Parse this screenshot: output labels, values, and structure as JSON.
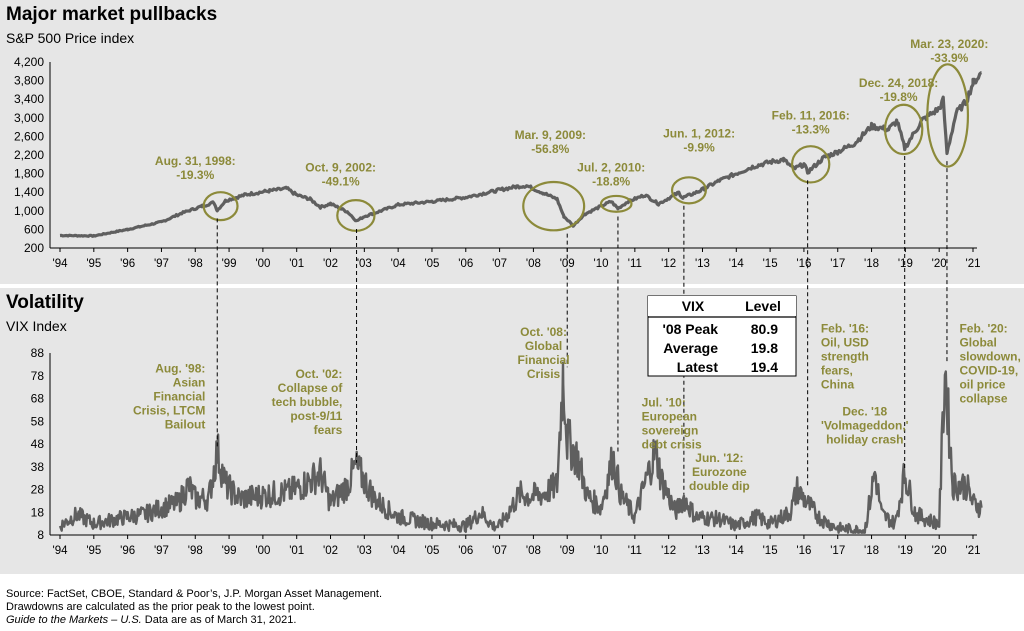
{
  "colors": {
    "panel_bg": "#e6e6e6",
    "line": "#5f5f5f",
    "annotation": "#8c8a3a",
    "ellipse": "#8c8a3a",
    "text": "#000000"
  },
  "chart_data": [
    {
      "type": "line",
      "title": "Major market pullbacks",
      "subtitle": "S&P 500 Price index",
      "x_ticks": [
        "'94",
        "'95",
        "'96",
        "'97",
        "'98",
        "'99",
        "'00",
        "'01",
        "'02",
        "'03",
        "'04",
        "'05",
        "'06",
        "'07",
        "'08",
        "'09",
        "'10",
        "'11",
        "'12",
        "'13",
        "'14",
        "'15",
        "'16",
        "'17",
        "'18",
        "'19",
        "'20",
        "'21"
      ],
      "y_ticks": [
        "200",
        "600",
        "1,000",
        "1,400",
        "1,800",
        "2,200",
        "2,600",
        "3,000",
        "3,400",
        "3,800",
        "4,200"
      ],
      "ylim": [
        200,
        4200
      ],
      "grid": false,
      "series": [
        {
          "x": [
            1994.0,
            1995.0,
            1996.0,
            1997.0,
            1997.6,
            1998.2,
            1998.55,
            1998.65,
            1998.9,
            1999.5,
            2000.2,
            2000.7,
            2001.0,
            2001.4,
            2001.7,
            2002.0,
            2002.5,
            2002.77,
            2003.0,
            2003.5,
            2004.0,
            2005.0,
            2006.0,
            2007.0,
            2007.5,
            2007.8,
            2008.3,
            2008.7,
            2008.9,
            2009.18,
            2009.5,
            2010.0,
            2010.3,
            2010.5,
            2010.8,
            2011.3,
            2011.7,
            2012.3,
            2012.42,
            2012.9,
            2013.5,
            2014.0,
            2014.5,
            2015.0,
            2015.4,
            2015.7,
            2016.0,
            2016.11,
            2016.6,
            2017.0,
            2017.5,
            2018.0,
            2018.5,
            2018.75,
            2018.98,
            2019.5,
            2020.0,
            2020.12,
            2020.23,
            2020.5,
            2020.8,
            2021.0,
            2021.25
          ],
          "values": [
            470,
            460,
            600,
            760,
            950,
            1100,
            1180,
            1010,
            1220,
            1350,
            1430,
            1480,
            1340,
            1250,
            1080,
            1150,
            980,
            780,
            880,
            1000,
            1130,
            1200,
            1290,
            1450,
            1520,
            1540,
            1380,
            1250,
            880,
            680,
            920,
            1100,
            1200,
            1050,
            1200,
            1340,
            1150,
            1390,
            1280,
            1420,
            1650,
            1800,
            1950,
            2050,
            2100,
            1900,
            2000,
            1830,
            2150,
            2270,
            2450,
            2820,
            2750,
            2930,
            2350,
            2950,
            3200,
            3380,
            2240,
            3100,
            3350,
            3750,
            3970
          ]
        }
      ],
      "annotations": [
        {
          "date": "Aug. 31, 1998:",
          "drawdown": "-19.3%"
        },
        {
          "date": "Oct. 9, 2002:",
          "drawdown": "-49.1%"
        },
        {
          "date": "Mar. 9, 2009:",
          "drawdown": "-56.8%"
        },
        {
          "date": "Jul. 2, 2010:",
          "drawdown": "-18.8%"
        },
        {
          "date": "Jun. 1, 2012:",
          "drawdown": "-9.9%"
        },
        {
          "date": "Feb. 11, 2016:",
          "drawdown": "-13.3%"
        },
        {
          "date": "Dec. 24, 2018:",
          "drawdown": "-19.8%"
        },
        {
          "date": "Mar. 23, 2020:",
          "drawdown": "-33.9%"
        }
      ]
    },
    {
      "type": "line",
      "title": "Volatility",
      "subtitle": "VIX Index",
      "x_ticks": [
        "'94",
        "'95",
        "'96",
        "'97",
        "'98",
        "'99",
        "'00",
        "'01",
        "'02",
        "'03",
        "'04",
        "'05",
        "'06",
        "'07",
        "'08",
        "'09",
        "'10",
        "'11",
        "'12",
        "'13",
        "'14",
        "'15",
        "'16",
        "'17",
        "'18",
        "'19",
        "'20",
        "'21"
      ],
      "y_ticks": [
        "8",
        "18",
        "28",
        "38",
        "48",
        "58",
        "68",
        "78",
        "88"
      ],
      "ylim": [
        8,
        88
      ],
      "grid": false,
      "series": [
        {
          "x": [
            1994.0,
            1994.5,
            1995.0,
            1996.0,
            1996.5,
            1997.0,
            1997.5,
            1997.8,
            1998.0,
            1998.4,
            1998.65,
            1998.9,
            1999.3,
            1999.8,
            2000.3,
            2000.8,
            2001.2,
            2001.7,
            2002.0,
            2002.5,
            2002.75,
            2003.0,
            2003.3,
            2003.7,
            2004.0,
            2005.0,
            2006.0,
            2006.45,
            2006.8,
            2007.0,
            2007.6,
            2007.9,
            2008.3,
            2008.7,
            2008.88,
            2009.0,
            2009.3,
            2009.6,
            2010.0,
            2010.35,
            2010.6,
            2011.0,
            2011.6,
            2011.8,
            2012.2,
            2012.45,
            2012.8,
            2013.5,
            2014.0,
            2014.6,
            2015.0,
            2015.6,
            2015.8,
            2016.1,
            2016.5,
            2017.0,
            2017.8,
            2018.1,
            2018.3,
            2018.7,
            2018.98,
            2019.3,
            2019.8,
            2020.0,
            2020.17,
            2020.4,
            2020.8,
            2021.0,
            2021.25
          ],
          "values": [
            12,
            17,
            13,
            16,
            17,
            20,
            22,
            30,
            24,
            24,
            45,
            30,
            24,
            25,
            26,
            27,
            30,
            35,
            22,
            30,
            38,
            32,
            24,
            19,
            16,
            13,
            12,
            18,
            12,
            12,
            26,
            25,
            26,
            30,
            80,
            50,
            42,
            25,
            20,
            42,
            25,
            16,
            45,
            32,
            18,
            24,
            16,
            15,
            12,
            16,
            13,
            18,
            28,
            22,
            15,
            11,
            10,
            36,
            17,
            13,
            35,
            17,
            14,
            13,
            82,
            30,
            30,
            22,
            20
          ]
        }
      ],
      "annotations": [
        "Aug. '98: Asian Financial Crisis, LTCM Bailout",
        "Oct. '02: Collapse of tech bubble, post-9/11 fears",
        "Oct. '08: Global Financial Crisis",
        "Jul. '10: European sovereign debt crisis",
        "Jun. '12: Eurozone double dip",
        "Feb. '16: Oil, USD strength fears, China",
        "Dec. '18 'Volmageddon,' holiday crash",
        "Feb. '20: Global slowdown, COVID-19, oil price collapse"
      ],
      "vix_table": {
        "headers": [
          "VIX",
          "Level"
        ],
        "rows": [
          [
            "'08 Peak",
            "80.9"
          ],
          [
            "Average",
            "19.8"
          ],
          [
            "Latest",
            "19.4"
          ]
        ]
      }
    }
  ],
  "text": {
    "title1": "Major market pullbacks",
    "sub1": "S&P 500 Price index",
    "title2": "Volatility",
    "sub2": "VIX Index",
    "footer_line1": "Source: FactSet, CBOE, Standard & Poor’s, J.P. Morgan Asset Management.",
    "footer_line2": "Drawdowns are calculated as the prior peak to the lowest point.",
    "footer_line3_italic": "Guide to the Markets – U.S.",
    "footer_line3_rest": " Data are as of March 31, 2021."
  }
}
